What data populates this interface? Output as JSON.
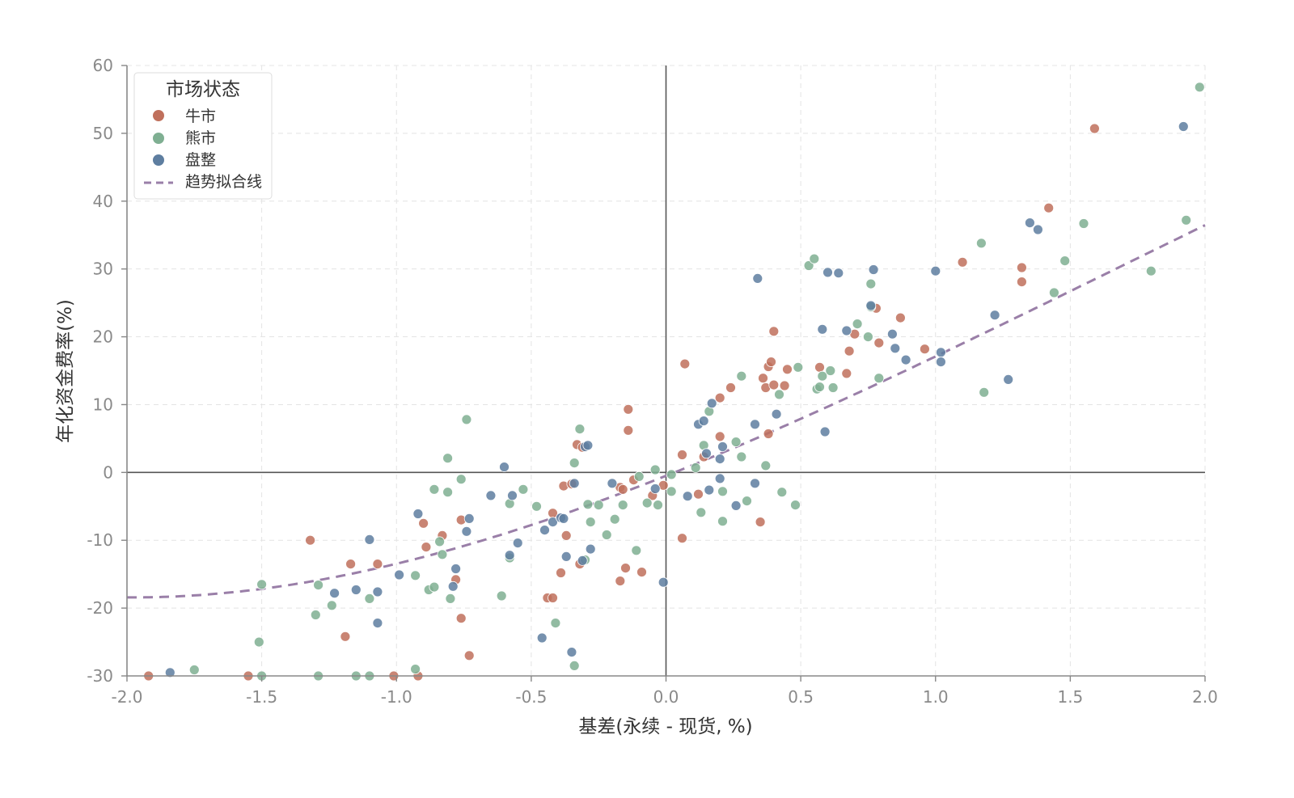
{
  "chart_data": {
    "type": "scatter",
    "title": "",
    "xlabel": "基差(永续 - 现货, %)",
    "ylabel": "年化资金费率(%)",
    "xlim": [
      -2.0,
      2.0
    ],
    "ylim": [
      -30,
      60
    ],
    "xticks": [
      -2.0,
      -1.5,
      -1.0,
      -0.5,
      0.0,
      0.5,
      1.0,
      1.5,
      2.0
    ],
    "xtick_labels": [
      "-2.0",
      "-1.5",
      "-1.0",
      "-0.5",
      "0.0",
      "0.5",
      "1.0",
      "1.5",
      "2.0"
    ],
    "yticks": [
      -30,
      -20,
      -10,
      0,
      10,
      20,
      30,
      40,
      50,
      60
    ],
    "ytick_labels": [
      "-30",
      "-20",
      "-10",
      "0",
      "10",
      "20",
      "30",
      "40",
      "50",
      "60"
    ],
    "grid": true,
    "reference_lines": {
      "x": 0,
      "y": 0
    },
    "legend": {
      "title": "市场状态",
      "position": "top-left",
      "trend_label": "趋势拟合线"
    },
    "series": [
      {
        "name": "牛市",
        "color": "#c0705c",
        "points": [
          [
            -1.92,
            -30
          ],
          [
            -1.55,
            -30
          ],
          [
            -1.32,
            -10
          ],
          [
            -1.17,
            -13.5
          ],
          [
            -1.19,
            -24.2
          ],
          [
            -1.07,
            -13.5
          ],
          [
            -1.01,
            -30
          ],
          [
            -0.92,
            -30
          ],
          [
            -0.9,
            -7.5
          ],
          [
            -0.89,
            -11
          ],
          [
            -0.83,
            -9.3
          ],
          [
            -0.78,
            -15.8
          ],
          [
            -0.76,
            -21.5
          ],
          [
            -0.76,
            -7
          ],
          [
            -0.73,
            -27
          ],
          [
            -0.44,
            -18.5
          ],
          [
            -0.42,
            -18.5
          ],
          [
            -0.42,
            -6
          ],
          [
            -0.39,
            -14.8
          ],
          [
            -0.38,
            -2
          ],
          [
            -0.37,
            -9.3
          ],
          [
            -0.35,
            -1.7
          ],
          [
            -0.33,
            4.1
          ],
          [
            -0.32,
            -13.5
          ],
          [
            -0.31,
            3.7
          ],
          [
            -0.17,
            -16
          ],
          [
            -0.17,
            -2.2
          ],
          [
            -0.16,
            -2.5
          ],
          [
            -0.15,
            -14.1
          ],
          [
            -0.14,
            9.3
          ],
          [
            -0.14,
            6.2
          ],
          [
            -0.12,
            -1.1
          ],
          [
            -0.09,
            -14.7
          ],
          [
            -0.05,
            -3.4
          ],
          [
            -0.01,
            -1.9
          ],
          [
            0.06,
            2.6
          ],
          [
            0.06,
            -9.7
          ],
          [
            0.07,
            16
          ],
          [
            0.12,
            -3.2
          ],
          [
            0.14,
            2.3
          ],
          [
            0.2,
            11
          ],
          [
            0.2,
            5.3
          ],
          [
            0.24,
            12.5
          ],
          [
            0.35,
            -7.3
          ],
          [
            0.36,
            13.9
          ],
          [
            0.37,
            12.5
          ],
          [
            0.38,
            5.7
          ],
          [
            0.38,
            15.6
          ],
          [
            0.39,
            16.3
          ],
          [
            0.4,
            20.8
          ],
          [
            0.4,
            12.9
          ],
          [
            0.44,
            12.8
          ],
          [
            0.45,
            15.2
          ],
          [
            0.57,
            15.5
          ],
          [
            0.67,
            14.6
          ],
          [
            0.68,
            17.9
          ],
          [
            0.7,
            20.4
          ],
          [
            0.78,
            24.2
          ],
          [
            0.79,
            19.1
          ],
          [
            0.87,
            22.8
          ],
          [
            0.96,
            18.2
          ],
          [
            1.1,
            31
          ],
          [
            1.32,
            30.2
          ],
          [
            1.32,
            28.1
          ],
          [
            1.42,
            39
          ],
          [
            1.59,
            50.7
          ]
        ]
      },
      {
        "name": "熊市",
        "color": "#7faf92",
        "points": [
          [
            -1.75,
            -29.1
          ],
          [
            -1.51,
            -25
          ],
          [
            -1.5,
            -16.5
          ],
          [
            -1.5,
            -30
          ],
          [
            -1.3,
            -21
          ],
          [
            -1.29,
            -16.6
          ],
          [
            -1.29,
            -30
          ],
          [
            -1.24,
            -19.6
          ],
          [
            -1.15,
            -30
          ],
          [
            -1.1,
            -18.6
          ],
          [
            -1.1,
            -30
          ],
          [
            -0.93,
            -29
          ],
          [
            -0.93,
            -15.2
          ],
          [
            -0.88,
            -17.3
          ],
          [
            -0.86,
            -2.5
          ],
          [
            -0.86,
            -16.9
          ],
          [
            -0.84,
            -10.2
          ],
          [
            -0.83,
            -12.1
          ],
          [
            -0.81,
            2.1
          ],
          [
            -0.81,
            -2.9
          ],
          [
            -0.8,
            -18.6
          ],
          [
            -0.76,
            -1
          ],
          [
            -0.74,
            7.8
          ],
          [
            -0.61,
            -18.2
          ],
          [
            -0.58,
            -12.6
          ],
          [
            -0.58,
            -4.6
          ],
          [
            -0.53,
            -2.5
          ],
          [
            -0.48,
            -5
          ],
          [
            -0.41,
            -22.2
          ],
          [
            -0.34,
            1.4
          ],
          [
            -0.34,
            -28.5
          ],
          [
            -0.32,
            6.4
          ],
          [
            -0.3,
            -12.9
          ],
          [
            -0.29,
            -4.7
          ],
          [
            -0.28,
            -7.3
          ],
          [
            -0.25,
            -4.8
          ],
          [
            -0.22,
            -9.2
          ],
          [
            -0.19,
            -6.9
          ],
          [
            -0.16,
            -4.8
          ],
          [
            -0.11,
            -11.5
          ],
          [
            -0.1,
            -0.6
          ],
          [
            -0.07,
            -4.5
          ],
          [
            -0.04,
            0.4
          ],
          [
            -0.03,
            -4.8
          ],
          [
            0.02,
            -2.8
          ],
          [
            0.02,
            -0.3
          ],
          [
            0.11,
            0.7
          ],
          [
            0.13,
            -5.9
          ],
          [
            0.14,
            4
          ],
          [
            0.16,
            9
          ],
          [
            0.21,
            -2.8
          ],
          [
            0.21,
            -7.2
          ],
          [
            0.26,
            4.5
          ],
          [
            0.28,
            14.2
          ],
          [
            0.28,
            2.3
          ],
          [
            0.3,
            -4.2
          ],
          [
            0.37,
            1
          ],
          [
            0.42,
            11.5
          ],
          [
            0.43,
            -2.9
          ],
          [
            0.48,
            -4.8
          ],
          [
            0.49,
            15.5
          ],
          [
            0.53,
            30.5
          ],
          [
            0.55,
            31.5
          ],
          [
            0.56,
            12.3
          ],
          [
            0.57,
            12.6
          ],
          [
            0.58,
            14.2
          ],
          [
            0.61,
            15
          ],
          [
            0.62,
            12.5
          ],
          [
            0.71,
            21.9
          ],
          [
            0.75,
            20
          ],
          [
            0.76,
            27.8
          ],
          [
            0.76,
            24.4
          ],
          [
            0.79,
            13.9
          ],
          [
            1.17,
            33.8
          ],
          [
            1.18,
            11.8
          ],
          [
            1.44,
            26.5
          ],
          [
            1.48,
            31.2
          ],
          [
            1.55,
            36.7
          ],
          [
            1.8,
            29.7
          ],
          [
            1.93,
            37.2
          ],
          [
            1.98,
            56.8
          ]
        ]
      },
      {
        "name": "盘整",
        "color": "#5e7ea0",
        "points": [
          [
            -1.84,
            -29.5
          ],
          [
            -1.23,
            -17.8
          ],
          [
            -1.15,
            -17.3
          ],
          [
            -1.1,
            -9.9
          ],
          [
            -1.07,
            -22.2
          ],
          [
            -1.07,
            -17.6
          ],
          [
            -0.99,
            -15.1
          ],
          [
            -0.92,
            -6.1
          ],
          [
            -0.79,
            -16.8
          ],
          [
            -0.78,
            -14.2
          ],
          [
            -0.74,
            -8.7
          ],
          [
            -0.73,
            -6.8
          ],
          [
            -0.65,
            -3.4
          ],
          [
            -0.6,
            0.8
          ],
          [
            -0.58,
            -12.2
          ],
          [
            -0.57,
            -3.4
          ],
          [
            -0.55,
            -10.4
          ],
          [
            -0.46,
            -24.4
          ],
          [
            -0.45,
            -8.5
          ],
          [
            -0.42,
            -7.3
          ],
          [
            -0.39,
            -6.7
          ],
          [
            -0.38,
            -6.8
          ],
          [
            -0.37,
            -12.4
          ],
          [
            -0.35,
            -26.5
          ],
          [
            -0.34,
            -1.6
          ],
          [
            -0.31,
            -13
          ],
          [
            -0.3,
            3.8
          ],
          [
            -0.29,
            4
          ],
          [
            -0.28,
            -11.3
          ],
          [
            -0.2,
            -1.6
          ],
          [
            -0.04,
            -2.4
          ],
          [
            -0.01,
            -16.2
          ],
          [
            0.08,
            -3.5
          ],
          [
            0.12,
            7.1
          ],
          [
            0.14,
            7.6
          ],
          [
            0.15,
            2.8
          ],
          [
            0.16,
            -2.6
          ],
          [
            0.17,
            10.2
          ],
          [
            0.2,
            2
          ],
          [
            0.2,
            -0.9
          ],
          [
            0.21,
            3.8
          ],
          [
            0.26,
            -4.9
          ],
          [
            0.33,
            -1.6
          ],
          [
            0.33,
            7.1
          ],
          [
            0.34,
            28.6
          ],
          [
            0.41,
            8.6
          ],
          [
            0.58,
            21.1
          ],
          [
            0.59,
            6
          ],
          [
            0.6,
            29.5
          ],
          [
            0.64,
            29.4
          ],
          [
            0.67,
            20.9
          ],
          [
            0.76,
            24.6
          ],
          [
            0.77,
            29.9
          ],
          [
            0.84,
            20.4
          ],
          [
            0.85,
            18.3
          ],
          [
            0.89,
            16.6
          ],
          [
            1.0,
            29.7
          ],
          [
            1.02,
            17.7
          ],
          [
            1.02,
            16.3
          ],
          [
            1.22,
            23.2
          ],
          [
            1.27,
            13.7
          ],
          [
            1.35,
            36.8
          ],
          [
            1.38,
            35.8
          ],
          [
            1.92,
            51
          ]
        ]
      }
    ],
    "trend": {
      "name": "趋势拟合线",
      "color": "#9a7fa8",
      "style": "dashed",
      "coefficients": [
        -0.5,
        15.8,
        2.3,
        -0.52,
        0.02
      ]
    }
  }
}
